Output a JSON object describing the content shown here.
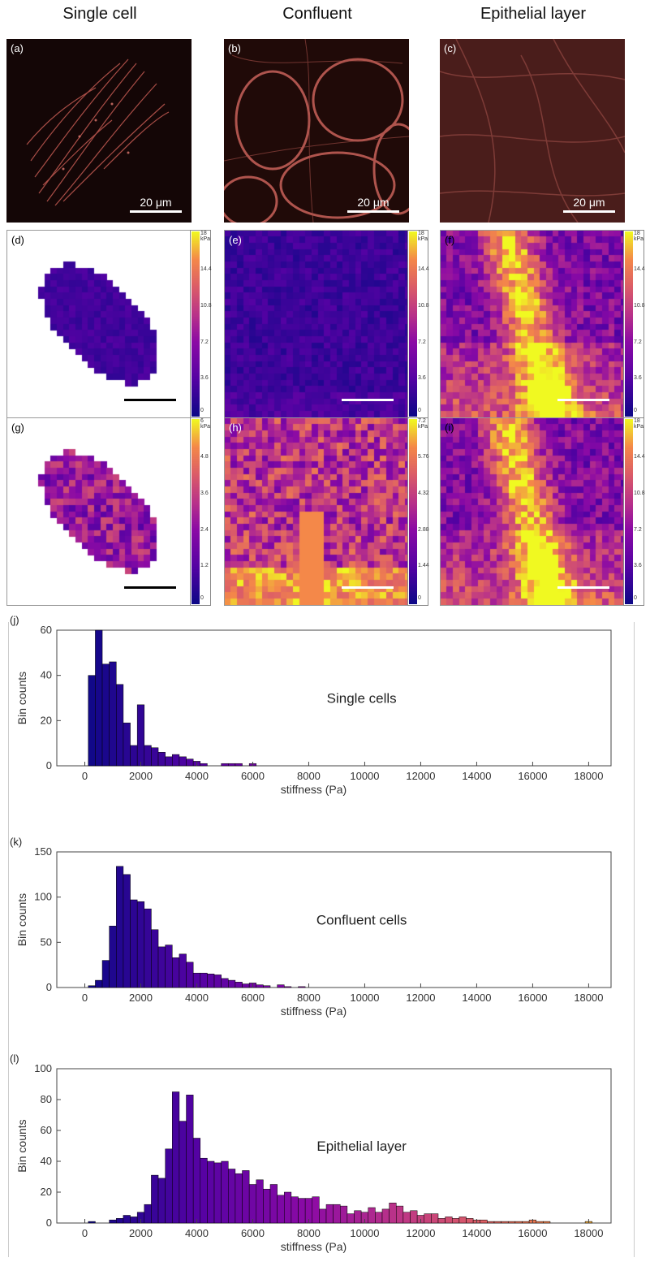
{
  "columns": [
    "Single cell",
    "Confluent",
    "Epithelial layer"
  ],
  "micro_panels": [
    {
      "label": "(a)",
      "scale": "20 μm"
    },
    {
      "label": "(b)",
      "scale": "20 μm"
    },
    {
      "label": "(c)",
      "scale": "20 μm"
    }
  ],
  "map_panels": [
    {
      "label": "(d)",
      "colorbar_ticks": [
        "18 kPa",
        "14.4",
        "10.8",
        "7.2",
        "3.6",
        "0"
      ],
      "vmax": 18
    },
    {
      "label": "(e)",
      "colorbar_ticks": [
        "18 kPa",
        "14.4",
        "10.8",
        "7.2",
        "3.6",
        "0"
      ],
      "vmax": 18
    },
    {
      "label": "(f)",
      "colorbar_ticks": [
        "18 kPa",
        "14.4",
        "10.8",
        "7.2",
        "3.6",
        "0"
      ],
      "vmax": 18
    },
    {
      "label": "(g)",
      "colorbar_ticks": [
        "6 kPa",
        "4.8",
        "3.6",
        "2.4",
        "1.2",
        "0"
      ],
      "vmax": 6
    },
    {
      "label": "(h)",
      "colorbar_ticks": [
        "7.2 kPa",
        "5.76",
        "4.32",
        "2.88",
        "1.44",
        "0"
      ],
      "vmax": 7.2
    },
    {
      "label": "(i)",
      "colorbar_ticks": [
        "18 kPa",
        "14.4",
        "10.8",
        "7.2",
        "3.6",
        "0"
      ],
      "vmax": 18
    }
  ],
  "chart_data": [
    {
      "type": "bar",
      "panel_label": "(j)",
      "annotation": "Single cells",
      "xlabel": "stiffness (Pa)",
      "ylabel": "Bin counts",
      "xlim": [
        -1000,
        18800
      ],
      "ylim": [
        0,
        60
      ],
      "yticks": [
        0,
        20,
        40,
        60
      ],
      "xticks": [
        0,
        2000,
        4000,
        6000,
        8000,
        10000,
        12000,
        14000,
        16000,
        18000
      ],
      "bin_width": 250,
      "bins": [
        {
          "x": 250,
          "y": 40
        },
        {
          "x": 500,
          "y": 60
        },
        {
          "x": 750,
          "y": 45
        },
        {
          "x": 1000,
          "y": 46
        },
        {
          "x": 1250,
          "y": 36
        },
        {
          "x": 1500,
          "y": 19
        },
        {
          "x": 1750,
          "y": 9
        },
        {
          "x": 2000,
          "y": 27
        },
        {
          "x": 2250,
          "y": 9
        },
        {
          "x": 2500,
          "y": 8
        },
        {
          "x": 2750,
          "y": 6
        },
        {
          "x": 3000,
          "y": 4
        },
        {
          "x": 3250,
          "y": 5
        },
        {
          "x": 3500,
          "y": 4
        },
        {
          "x": 3750,
          "y": 3
        },
        {
          "x": 4000,
          "y": 2
        },
        {
          "x": 4250,
          "y": 1
        },
        {
          "x": 5000,
          "y": 1
        },
        {
          "x": 5250,
          "y": 1
        },
        {
          "x": 5500,
          "y": 1
        },
        {
          "x": 6000,
          "y": 1
        }
      ]
    },
    {
      "type": "bar",
      "panel_label": "(k)",
      "annotation": "Confluent cells",
      "xlabel": "stiffness (Pa)",
      "ylabel": "Bin counts",
      "xlim": [
        -1000,
        18800
      ],
      "ylim": [
        0,
        150
      ],
      "yticks": [
        0,
        50,
        100,
        150
      ],
      "xticks": [
        0,
        2000,
        4000,
        6000,
        8000,
        10000,
        12000,
        14000,
        16000,
        18000
      ],
      "bin_width": 250,
      "bins": [
        {
          "x": 250,
          "y": 2
        },
        {
          "x": 500,
          "y": 8
        },
        {
          "x": 750,
          "y": 30
        },
        {
          "x": 1000,
          "y": 68
        },
        {
          "x": 1250,
          "y": 134
        },
        {
          "x": 1500,
          "y": 125
        },
        {
          "x": 1750,
          "y": 97
        },
        {
          "x": 2000,
          "y": 95
        },
        {
          "x": 2250,
          "y": 87
        },
        {
          "x": 2500,
          "y": 64
        },
        {
          "x": 2750,
          "y": 45
        },
        {
          "x": 3000,
          "y": 47
        },
        {
          "x": 3250,
          "y": 33
        },
        {
          "x": 3500,
          "y": 37
        },
        {
          "x": 3750,
          "y": 28
        },
        {
          "x": 4000,
          "y": 16
        },
        {
          "x": 4250,
          "y": 16
        },
        {
          "x": 4500,
          "y": 15
        },
        {
          "x": 4750,
          "y": 14
        },
        {
          "x": 5000,
          "y": 10
        },
        {
          "x": 5250,
          "y": 8
        },
        {
          "x": 5500,
          "y": 6
        },
        {
          "x": 5750,
          "y": 4
        },
        {
          "x": 6000,
          "y": 5
        },
        {
          "x": 6250,
          "y": 3
        },
        {
          "x": 6500,
          "y": 2
        },
        {
          "x": 7000,
          "y": 3
        },
        {
          "x": 7250,
          "y": 1
        },
        {
          "x": 7750,
          "y": 1
        }
      ]
    },
    {
      "type": "bar",
      "panel_label": "(l)",
      "annotation": "Epithelial layer",
      "xlabel": "stiffness (Pa)",
      "ylabel": "Bin counts",
      "xlim": [
        -1000,
        18800
      ],
      "ylim": [
        0,
        100
      ],
      "yticks": [
        0,
        20,
        40,
        60,
        80,
        100
      ],
      "xticks": [
        0,
        2000,
        4000,
        6000,
        8000,
        10000,
        12000,
        14000,
        16000,
        18000
      ],
      "bin_width": 250,
      "bins": [
        {
          "x": 250,
          "y": 1
        },
        {
          "x": 1000,
          "y": 2
        },
        {
          "x": 1250,
          "y": 3
        },
        {
          "x": 1500,
          "y": 5
        },
        {
          "x": 1750,
          "y": 4
        },
        {
          "x": 2000,
          "y": 7
        },
        {
          "x": 2250,
          "y": 12
        },
        {
          "x": 2500,
          "y": 31
        },
        {
          "x": 2750,
          "y": 29
        },
        {
          "x": 3000,
          "y": 48
        },
        {
          "x": 3250,
          "y": 85
        },
        {
          "x": 3500,
          "y": 66
        },
        {
          "x": 3750,
          "y": 83
        },
        {
          "x": 4000,
          "y": 55
        },
        {
          "x": 4250,
          "y": 42
        },
        {
          "x": 4500,
          "y": 40
        },
        {
          "x": 4750,
          "y": 39
        },
        {
          "x": 5000,
          "y": 40
        },
        {
          "x": 5250,
          "y": 35
        },
        {
          "x": 5500,
          "y": 32
        },
        {
          "x": 5750,
          "y": 34
        },
        {
          "x": 6000,
          "y": 25
        },
        {
          "x": 6250,
          "y": 28
        },
        {
          "x": 6500,
          "y": 22
        },
        {
          "x": 6750,
          "y": 25
        },
        {
          "x": 7000,
          "y": 18
        },
        {
          "x": 7250,
          "y": 20
        },
        {
          "x": 7500,
          "y": 17
        },
        {
          "x": 7750,
          "y": 16
        },
        {
          "x": 8000,
          "y": 16
        },
        {
          "x": 8250,
          "y": 17
        },
        {
          "x": 8500,
          "y": 9
        },
        {
          "x": 8750,
          "y": 12
        },
        {
          "x": 9000,
          "y": 12
        },
        {
          "x": 9250,
          "y": 11
        },
        {
          "x": 9500,
          "y": 6
        },
        {
          "x": 9750,
          "y": 8
        },
        {
          "x": 10000,
          "y": 7
        },
        {
          "x": 10250,
          "y": 10
        },
        {
          "x": 10500,
          "y": 7
        },
        {
          "x": 10750,
          "y": 9
        },
        {
          "x": 11000,
          "y": 13
        },
        {
          "x": 11250,
          "y": 11
        },
        {
          "x": 11500,
          "y": 7
        },
        {
          "x": 11750,
          "y": 8
        },
        {
          "x": 12000,
          "y": 5
        },
        {
          "x": 12250,
          "y": 6
        },
        {
          "x": 12500,
          "y": 6
        },
        {
          "x": 12750,
          "y": 3
        },
        {
          "x": 13000,
          "y": 4
        },
        {
          "x": 13250,
          "y": 3
        },
        {
          "x": 13500,
          "y": 4
        },
        {
          "x": 13750,
          "y": 3
        },
        {
          "x": 14000,
          "y": 2
        },
        {
          "x": 14250,
          "y": 2
        },
        {
          "x": 14500,
          "y": 1
        },
        {
          "x": 14750,
          "y": 1
        },
        {
          "x": 15000,
          "y": 1
        },
        {
          "x": 15250,
          "y": 1
        },
        {
          "x": 15500,
          "y": 1
        },
        {
          "x": 15750,
          "y": 1
        },
        {
          "x": 16000,
          "y": 2
        },
        {
          "x": 16250,
          "y": 1
        },
        {
          "x": 16500,
          "y": 1
        },
        {
          "x": 18000,
          "y": 1
        }
      ]
    }
  ]
}
